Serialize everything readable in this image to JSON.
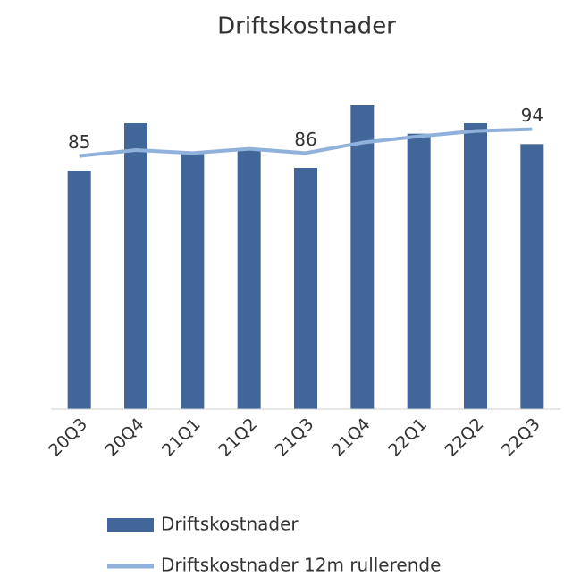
{
  "chart_data": {
    "type": "bar_line",
    "title": "Driftskostnader",
    "categories": [
      "20Q3",
      "20Q4",
      "21Q1",
      "21Q2",
      "21Q3",
      "21Q4",
      "22Q1",
      "22Q2",
      "22Q3"
    ],
    "series": [
      {
        "name": "Driftskostnader",
        "type": "bar",
        "color": "#41679a",
        "values": [
          80,
          96,
          86.5,
          87,
          81,
          102,
          92.5,
          96,
          89
        ]
      },
      {
        "name": "Driftskostnader 12m rullerende",
        "type": "line",
        "color": "#8fb1db",
        "values": [
          85,
          87,
          86,
          87.4,
          86,
          89.5,
          91.6,
          93.4,
          94
        ],
        "value_labels": [
          "85",
          null,
          null,
          null,
          "86",
          null,
          null,
          null,
          "94"
        ]
      }
    ],
    "ylim": [
      0,
      105
    ],
    "grid": false,
    "legend": "bottom"
  }
}
